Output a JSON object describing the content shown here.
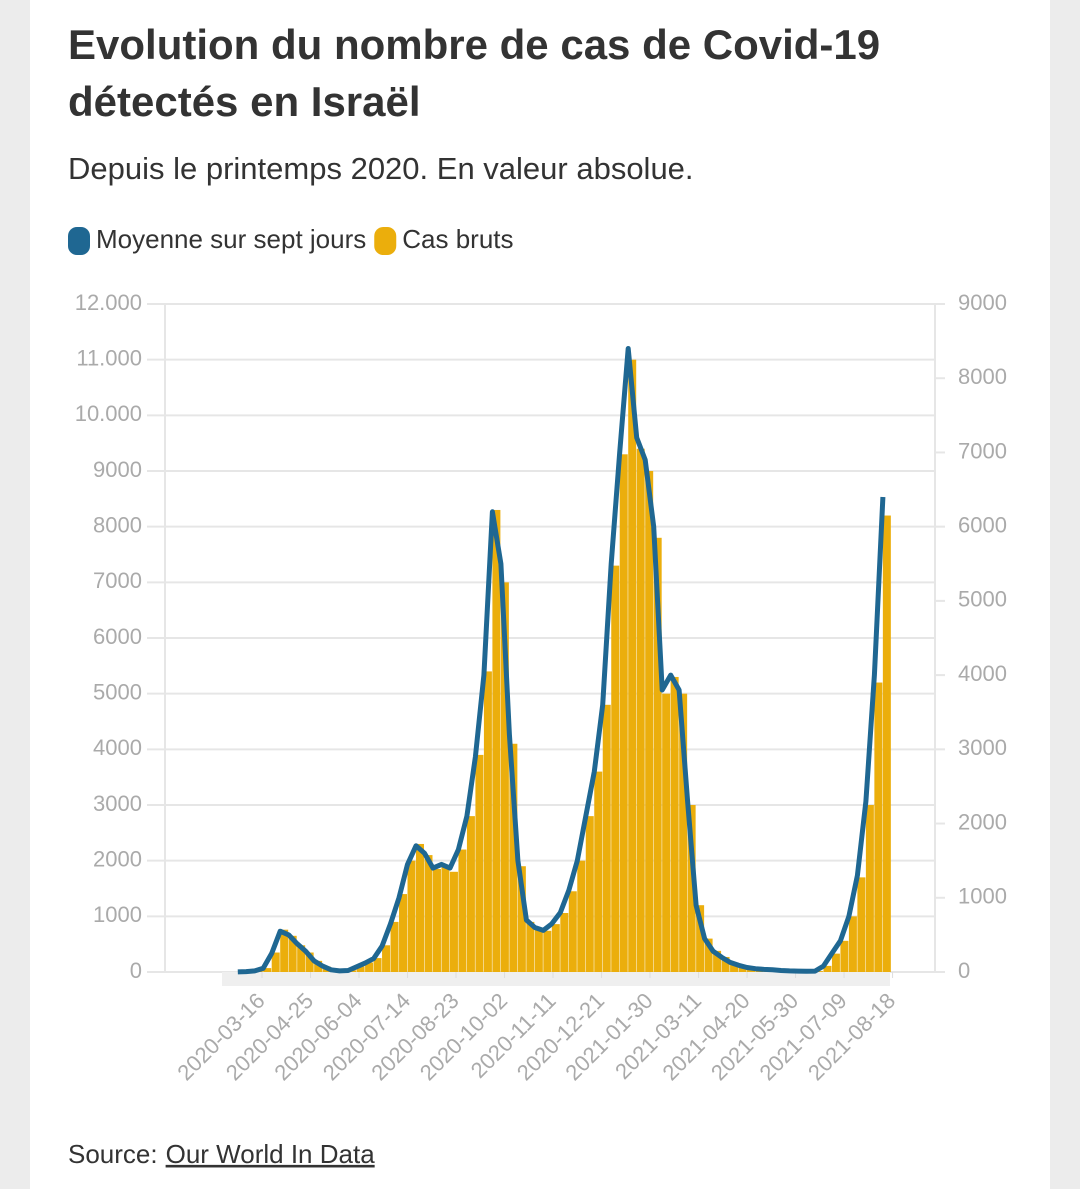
{
  "chart_data": {
    "type": "bar-line",
    "title": [
      "Evolution du nombre de cas de Covid-19",
      "détectés en Israël"
    ],
    "subtitle": "Depuis le printemps 2020. En valeur absolue.",
    "x": [
      "2020-02-25",
      "2020-03-03",
      "2020-03-10",
      "2020-03-17",
      "2020-03-24",
      "2020-03-31",
      "2020-04-07",
      "2020-04-14",
      "2020-04-21",
      "2020-04-28",
      "2020-05-05",
      "2020-05-12",
      "2020-05-19",
      "2020-05-26",
      "2020-06-02",
      "2020-06-09",
      "2020-06-16",
      "2020-06-23",
      "2020-06-30",
      "2020-07-07",
      "2020-07-14",
      "2020-07-21",
      "2020-07-28",
      "2020-08-04",
      "2020-08-11",
      "2020-08-18",
      "2020-08-25",
      "2020-09-01",
      "2020-09-08",
      "2020-09-15",
      "2020-09-22",
      "2020-09-29",
      "2020-10-06",
      "2020-10-13",
      "2020-10-20",
      "2020-10-27",
      "2020-11-03",
      "2020-11-10",
      "2020-11-17",
      "2020-11-24",
      "2020-12-01",
      "2020-12-08",
      "2020-12-15",
      "2020-12-22",
      "2020-12-29",
      "2021-01-05",
      "2021-01-12",
      "2021-01-19",
      "2021-01-26",
      "2021-02-02",
      "2021-02-09",
      "2021-02-16",
      "2021-02-23",
      "2021-03-02",
      "2021-03-09",
      "2021-03-16",
      "2021-03-23",
      "2021-03-30",
      "2021-04-06",
      "2021-04-13",
      "2021-04-20",
      "2021-04-27",
      "2021-05-04",
      "2021-05-11",
      "2021-05-18",
      "2021-05-25",
      "2021-06-01",
      "2021-06-08",
      "2021-06-15",
      "2021-06-22",
      "2021-06-29",
      "2021-07-06",
      "2021-07-13",
      "2021-07-20",
      "2021-07-27",
      "2021-08-03",
      "2021-08-10"
    ],
    "series": [
      {
        "name": "Moyenne sur sept jours",
        "color": "#1f6792",
        "kind": "line",
        "axis": "y2",
        "values": [
          2,
          5,
          15,
          50,
          250,
          550,
          500,
          380,
          280,
          150,
          80,
          30,
          15,
          20,
          70,
          120,
          180,
          350,
          650,
          1000,
          1450,
          1700,
          1600,
          1400,
          1450,
          1400,
          1650,
          2100,
          2900,
          4000,
          6200,
          5500,
          3200,
          1500,
          700,
          600,
          560,
          650,
          800,
          1100,
          1500,
          2100,
          2700,
          3600,
          5500,
          7000,
          8400,
          7200,
          6900,
          6000,
          3800,
          4000,
          3800,
          2300,
          900,
          450,
          280,
          200,
          130,
          90,
          60,
          45,
          35,
          30,
          20,
          15,
          12,
          10,
          12,
          80,
          250,
          420,
          750,
          1300,
          2300,
          4000,
          6400
        ]
      },
      {
        "name": "Cas bruts",
        "color": "#ebae0c",
        "kind": "bar",
        "axis": "y",
        "values": [
          3,
          8,
          25,
          70,
          350,
          760,
          650,
          480,
          350,
          200,
          100,
          40,
          20,
          30,
          100,
          170,
          250,
          480,
          900,
          1400,
          2000,
          2300,
          2100,
          1850,
          1900,
          1800,
          2200,
          2800,
          3900,
          5400,
          8300,
          7000,
          4100,
          1900,
          900,
          780,
          740,
          860,
          1060,
          1450,
          2000,
          2800,
          3600,
          4800,
          7300,
          9300,
          11000,
          9400,
          9000,
          7800,
          5000,
          5300,
          5000,
          3000,
          1200,
          600,
          380,
          270,
          170,
          120,
          80,
          60,
          45,
          40,
          25,
          20,
          15,
          13,
          16,
          110,
          330,
          560,
          1000,
          1700,
          3000,
          5200,
          8200
        ]
      }
    ],
    "xlim": [
      "2019-12-27",
      "2021-09-22"
    ],
    "xticks": [
      "2020-03-16",
      "2020-04-25",
      "2020-06-04",
      "2020-07-14",
      "2020-08-23",
      "2020-10-02",
      "2020-11-11",
      "2020-12-21",
      "2021-01-30",
      "2021-03-11",
      "2021-04-20",
      "2021-05-30",
      "2021-07-09",
      "2021-08-18"
    ],
    "ylim": [
      0,
      12000
    ],
    "yticks": [
      0,
      1000,
      2000,
      3000,
      4000,
      5000,
      6000,
      7000,
      8000,
      9000,
      {
        "value": 10000,
        "label": "10.000"
      },
      {
        "value": 11000,
        "label": "11.000"
      },
      {
        "value": 12000,
        "label": "12.000"
      }
    ],
    "y2lim": [
      0,
      9000
    ],
    "y2ticks": [
      0,
      1000,
      2000,
      3000,
      4000,
      5000,
      6000,
      7000,
      8000,
      9000
    ],
    "grid": true,
    "legend": "top-left",
    "source_label": "Source:",
    "source_link": "Our World In Data"
  }
}
